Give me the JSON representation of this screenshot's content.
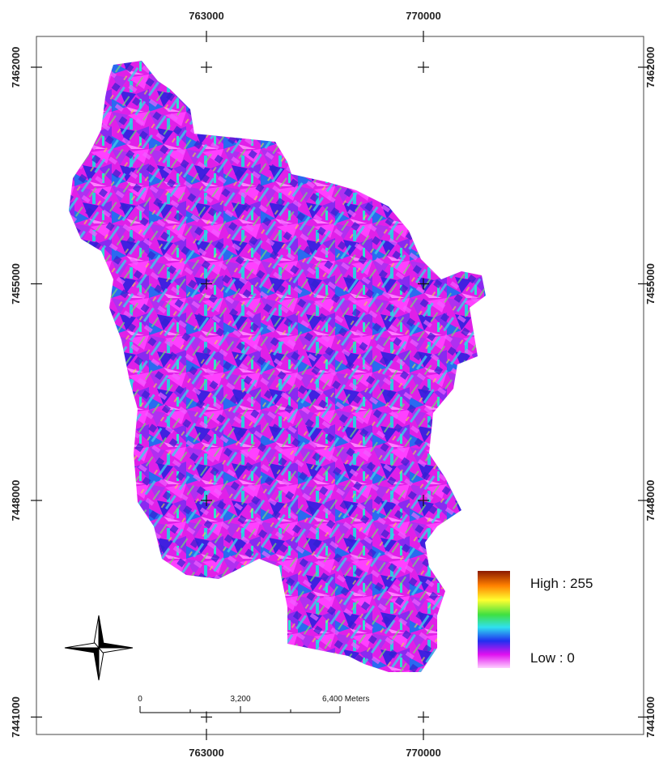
{
  "map": {
    "x_labels": [
      "763000",
      "770000"
    ],
    "y_labels": [
      "7462000",
      "7455000",
      "7448000",
      "7441000"
    ],
    "legend": {
      "high": "High : 255",
      "low": "Low : 0"
    },
    "scale_bar": {
      "labels": [
        "0",
        "3,200",
        "6,400 Meters"
      ]
    }
  }
}
